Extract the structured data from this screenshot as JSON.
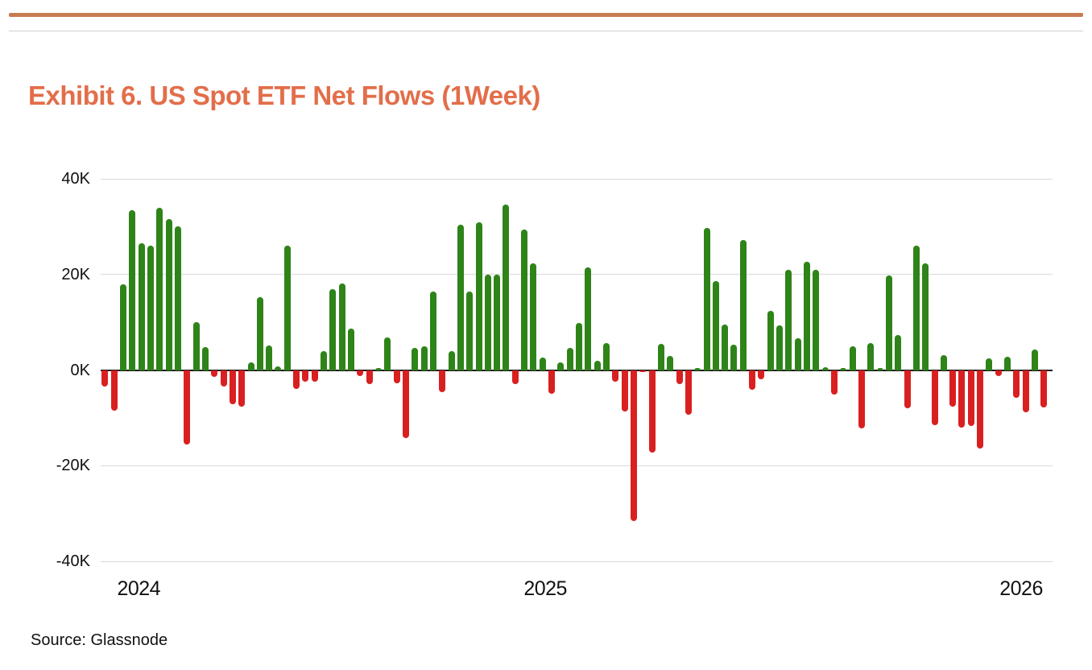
{
  "title": "Exhibit 6. US Spot ETF Net Flows (1Week)",
  "source_label": "Source: Glassnode",
  "colors": {
    "title_text": "#E26E4A",
    "top_rule": "#C77C52",
    "divider_rule": "#CFCFCF",
    "positive_bar": "#2E8418",
    "negative_bar": "#D92020",
    "gridline": "#D9D9D9",
    "zero_line": "#1A1A1A",
    "axis_text": "#111111"
  },
  "chart_data": {
    "type": "bar",
    "title": "US Spot ETF Net Flows (1Week)",
    "xlabel": "",
    "ylabel": "",
    "unit": "K",
    "ylim": [
      -40,
      40
    ],
    "grid": "horizontal",
    "legend": "none",
    "frequency": "weekly",
    "y_ticks": [
      {
        "label": "40K",
        "value": 40
      },
      {
        "label": "20K",
        "value": 20
      },
      {
        "label": "0K",
        "value": 0
      },
      {
        "label": "-20K",
        "value": -20
      },
      {
        "label": "-40K",
        "value": -40
      }
    ],
    "x_ticks": [
      {
        "label": "2024",
        "bar_index": 3.7
      },
      {
        "label": "2025",
        "bar_index": 48.3
      },
      {
        "label": "2026",
        "bar_index": 100.5
      }
    ],
    "values": [
      -3.5,
      -8.5,
      18,
      33.5,
      26.5,
      26,
      34,
      31.5,
      30,
      -15.5,
      10,
      4.8,
      -1.4,
      -3.4,
      -7.2,
      -7.6,
      1.6,
      15.2,
      5.2,
      0.7,
      26,
      -3.9,
      -2.4,
      -2.4,
      3.9,
      17,
      18.1,
      8.6,
      -1.2,
      -3,
      0.4,
      6.9,
      -2.7,
      -14.2,
      4.7,
      5,
      16.4,
      -4.6,
      4,
      30.4,
      16.4,
      30.9,
      20,
      20,
      34.6,
      -3,
      29.4,
      22.3,
      2.6,
      -4.9,
      1.6,
      4.7,
      9.9,
      21.4,
      1.9,
      5.7,
      -2.4,
      -8.7,
      -31.5,
      -0.5,
      -17.2,
      5.4,
      3,
      -3,
      -9.4,
      0.5,
      29.7,
      18.6,
      9.5,
      5.3,
      27.2,
      -4.2,
      -1.9,
      12.4,
      9.3,
      21,
      6.7,
      22.6,
      21,
      0.6,
      -5.1,
      0.4,
      5,
      -12.2,
      5.7,
      0.5,
      19.8,
      7.3,
      -8,
      26.1,
      22.4,
      -11.6,
      3.1,
      -7.7,
      -12.1,
      -11.7,
      -16.4,
      2.4,
      -1.3,
      2.8,
      -5.8,
      -8.9,
      4.3,
      -7.8
    ]
  }
}
